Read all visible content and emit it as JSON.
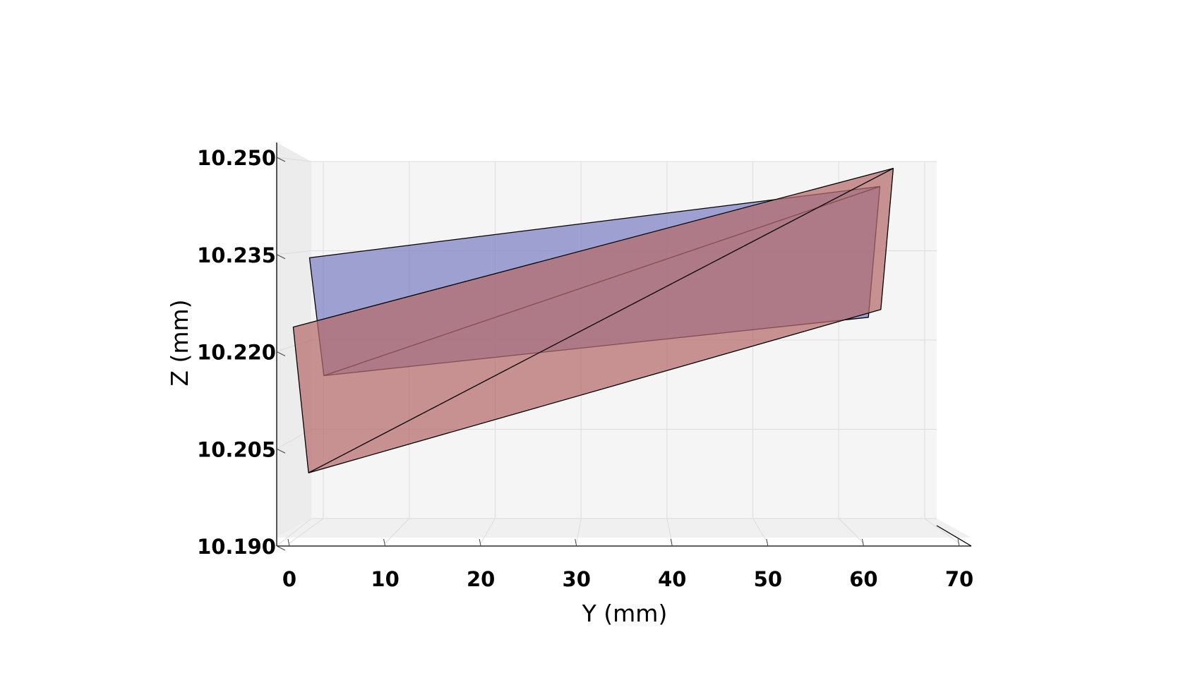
{
  "chart_data": {
    "type": "3d-surface",
    "view": "side (Y-Z projection)",
    "xlabel": "Y (mm)",
    "ylabel": "Z (mm)",
    "xlim": [
      0,
      70
    ],
    "ylim": [
      10.19,
      10.25
    ],
    "x_ticks": [
      "0",
      "10",
      "20",
      "30",
      "40",
      "50",
      "60",
      "70"
    ],
    "y_ticks": [
      "10.190",
      "10.205",
      "10.220",
      "10.235",
      "10.250"
    ],
    "grid": true,
    "colors": {
      "blue_plane": "#7b7fc4",
      "red_plane": "#b56b6b"
    },
    "series": [
      {
        "color": "blue",
        "fill": "#7b7fc4",
        "polygon": [
          [
            2.1,
            10.2345
          ],
          [
            61.7,
            10.2455
          ],
          [
            60.5,
            10.2253
          ],
          [
            3.6,
            10.2163
          ]
        ],
        "diagonal": [
          [
            3.6,
            10.2163
          ],
          [
            61.7,
            10.2455
          ]
        ]
      },
      {
        "color": "red",
        "fill": "#b56b6b",
        "polygon": [
          [
            63.1,
            10.2483
          ],
          [
            61.8,
            10.2265
          ],
          [
            2.0,
            10.2013
          ],
          [
            0.4,
            10.2238
          ]
        ],
        "diagonal": [
          [
            2.0,
            10.2013
          ],
          [
            63.1,
            10.2483
          ]
        ]
      }
    ]
  }
}
